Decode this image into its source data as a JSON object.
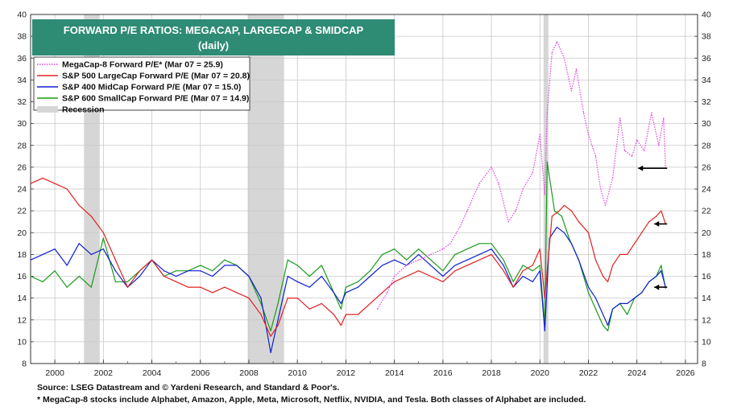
{
  "chart_data": {
    "type": "line",
    "title": "FORWARD P/E RATIOS: MEGACAP, LARGECAP & SMIDCAP",
    "subtitle": "(daily)",
    "xlabel": "",
    "ylabel": "",
    "xlim": [
      1999,
      2026.5
    ],
    "ylim": [
      8,
      40
    ],
    "x_ticks": [
      "2000",
      "2002",
      "2004",
      "2006",
      "2008",
      "2010",
      "2012",
      "2014",
      "2016",
      "2018",
      "2020",
      "2022",
      "2024",
      "2026"
    ],
    "y_ticks": [
      "8",
      "10",
      "12",
      "14",
      "16",
      "18",
      "20",
      "22",
      "24",
      "26",
      "28",
      "30",
      "32",
      "34",
      "36",
      "38",
      "40"
    ],
    "legend_position": "top-left",
    "recessions": [
      [
        2001.2,
        2001.85
      ],
      [
        2007.95,
        2009.45
      ],
      [
        2020.15,
        2020.35
      ]
    ],
    "recession_label": "Recession",
    "series": [
      {
        "name": "MegaCap-8 Forward P/E* (Mar 07 = 25.9)",
        "color": "#e040e0",
        "style": "dotted",
        "x": [
          2013.3,
          2013.7,
          2014.0,
          2014.5,
          2015.0,
          2015.5,
          2016.0,
          2016.3,
          2016.7,
          2017.0,
          2017.5,
          2018.0,
          2018.3,
          2018.7,
          2019.0,
          2019.3,
          2019.7,
          2020.0,
          2020.2,
          2020.3,
          2020.5,
          2020.7,
          2021.0,
          2021.3,
          2021.5,
          2021.8,
          2022.0,
          2022.3,
          2022.5,
          2022.7,
          2023.0,
          2023.3,
          2023.5,
          2023.8,
          2024.0,
          2024.3,
          2024.6,
          2024.9,
          2025.1,
          2025.18
        ],
        "values": [
          13.0,
          14.5,
          16.0,
          17.0,
          17.5,
          18.0,
          18.5,
          19.0,
          20.5,
          22.0,
          24.5,
          26.0,
          24.5,
          21.0,
          22.0,
          24.0,
          25.5,
          29.0,
          23.5,
          31.0,
          36.5,
          37.5,
          36.0,
          33.0,
          35.0,
          31.0,
          29.0,
          27.0,
          24.0,
          22.5,
          25.0,
          30.5,
          27.5,
          27.0,
          28.5,
          27.5,
          31.0,
          28.0,
          30.5,
          25.9
        ]
      },
      {
        "name": "S&P 500 LargeCap Forward P/E (Mar 07 = 20.8)",
        "color": "#e02020",
        "style": "solid",
        "x": [
          1999.0,
          1999.5,
          2000.0,
          2000.5,
          2001.0,
          2001.5,
          2002.0,
          2002.5,
          2003.0,
          2003.5,
          2004.0,
          2004.5,
          2005.0,
          2005.5,
          2006.0,
          2006.5,
          2007.0,
          2007.5,
          2008.0,
          2008.5,
          2008.9,
          2009.2,
          2009.6,
          2010.0,
          2010.5,
          2011.0,
          2011.5,
          2011.8,
          2012.0,
          2012.5,
          2013.0,
          2013.5,
          2014.0,
          2014.5,
          2015.0,
          2015.5,
          2016.0,
          2016.5,
          2017.0,
          2017.5,
          2018.0,
          2018.5,
          2018.9,
          2019.3,
          2019.7,
          2020.0,
          2020.2,
          2020.5,
          2020.8,
          2021.0,
          2021.3,
          2021.6,
          2022.0,
          2022.3,
          2022.6,
          2022.8,
          2023.0,
          2023.3,
          2023.6,
          2023.9,
          2024.2,
          2024.5,
          2024.8,
          2025.0,
          2025.18
        ],
        "values": [
          24.5,
          25.0,
          24.5,
          24.0,
          22.5,
          21.5,
          20.0,
          17.5,
          15.0,
          16.5,
          17.5,
          16.0,
          15.5,
          15.0,
          15.0,
          14.5,
          15.0,
          14.5,
          14.0,
          12.5,
          10.5,
          11.5,
          14.0,
          14.0,
          13.0,
          13.5,
          12.5,
          11.5,
          12.5,
          12.5,
          13.5,
          14.5,
          15.5,
          16.0,
          16.5,
          16.0,
          15.5,
          16.5,
          17.0,
          17.5,
          18.0,
          16.5,
          15.0,
          16.5,
          17.0,
          18.5,
          14.0,
          21.5,
          22.0,
          22.5,
          22.0,
          21.0,
          20.0,
          17.5,
          16.0,
          15.5,
          17.0,
          18.0,
          18.0,
          19.0,
          20.0,
          21.0,
          21.5,
          22.0,
          20.8
        ]
      },
      {
        "name": "S&P 400 MidCap Forward P/E (Mar 07 = 15.0)",
        "color": "#1020d0",
        "style": "solid",
        "x": [
          1999.0,
          1999.5,
          2000.0,
          2000.5,
          2001.0,
          2001.5,
          2002.0,
          2002.5,
          2003.0,
          2003.5,
          2004.0,
          2004.5,
          2005.0,
          2005.5,
          2006.0,
          2006.5,
          2007.0,
          2007.5,
          2008.0,
          2008.5,
          2008.9,
          2009.2,
          2009.6,
          2010.0,
          2010.5,
          2011.0,
          2011.5,
          2011.8,
          2012.0,
          2012.5,
          2013.0,
          2013.5,
          2014.0,
          2014.5,
          2015.0,
          2015.5,
          2016.0,
          2016.5,
          2017.0,
          2017.5,
          2018.0,
          2018.5,
          2018.9,
          2019.3,
          2019.7,
          2020.0,
          2020.2,
          2020.4,
          2020.7,
          2021.0,
          2021.3,
          2021.6,
          2022.0,
          2022.3,
          2022.6,
          2022.8,
          2023.0,
          2023.3,
          2023.6,
          2023.9,
          2024.2,
          2024.5,
          2024.8,
          2025.0,
          2025.18
        ],
        "values": [
          17.5,
          18.0,
          18.5,
          17.0,
          19.0,
          18.0,
          18.5,
          16.5,
          15.0,
          16.0,
          17.5,
          16.5,
          16.0,
          16.5,
          16.5,
          16.0,
          17.0,
          17.0,
          16.0,
          14.0,
          9.0,
          12.0,
          16.0,
          15.5,
          15.0,
          16.0,
          14.5,
          13.5,
          14.5,
          15.0,
          16.0,
          17.0,
          17.5,
          17.0,
          18.0,
          17.0,
          16.0,
          17.0,
          17.5,
          18.0,
          18.5,
          17.0,
          15.0,
          16.0,
          15.5,
          16.5,
          11.0,
          19.5,
          20.5,
          20.0,
          19.0,
          17.5,
          15.0,
          14.0,
          12.5,
          11.5,
          13.0,
          13.5,
          13.5,
          14.0,
          14.5,
          15.5,
          16.0,
          16.5,
          15.0
        ]
      },
      {
        "name": "S&P 600 SmallCap Forward P/E (Mar 07 = 14.9)",
        "color": "#1a9a1a",
        "style": "solid",
        "x": [
          1999.0,
          1999.5,
          2000.0,
          2000.5,
          2001.0,
          2001.5,
          2002.0,
          2002.5,
          2003.0,
          2003.5,
          2004.0,
          2004.5,
          2005.0,
          2005.5,
          2006.0,
          2006.5,
          2007.0,
          2007.5,
          2008.0,
          2008.5,
          2008.9,
          2009.2,
          2009.6,
          2010.0,
          2010.5,
          2011.0,
          2011.5,
          2011.8,
          2012.0,
          2012.5,
          2013.0,
          2013.5,
          2014.0,
          2014.5,
          2015.0,
          2015.5,
          2016.0,
          2016.5,
          2017.0,
          2017.5,
          2018.0,
          2018.5,
          2018.9,
          2019.3,
          2019.7,
          2020.0,
          2020.2,
          2020.3,
          2020.6,
          2020.9,
          2021.2,
          2021.6,
          2022.0,
          2022.3,
          2022.6,
          2022.8,
          2023.0,
          2023.3,
          2023.6,
          2023.9,
          2024.2,
          2024.5,
          2024.8,
          2025.0,
          2025.18
        ],
        "values": [
          16.0,
          15.5,
          16.5,
          15.0,
          16.0,
          15.0,
          19.5,
          15.5,
          15.5,
          16.5,
          17.5,
          16.0,
          16.5,
          16.5,
          17.0,
          16.5,
          17.5,
          17.0,
          16.0,
          13.5,
          11.0,
          13.5,
          17.5,
          17.0,
          16.0,
          17.0,
          14.5,
          13.0,
          15.0,
          15.5,
          16.5,
          18.0,
          18.5,
          17.5,
          18.5,
          17.5,
          16.5,
          18.0,
          18.5,
          19.0,
          19.0,
          17.5,
          15.5,
          17.0,
          16.5,
          17.0,
          11.5,
          26.5,
          22.0,
          21.5,
          19.5,
          17.5,
          14.5,
          13.0,
          11.5,
          11.0,
          13.0,
          13.5,
          12.5,
          14.0,
          14.5,
          15.5,
          16.0,
          17.0,
          14.9
        ]
      }
    ]
  },
  "source_line_1": "Source: LSEG Datastream and © Yardeni Research, and Standard & Poor's.",
  "source_line_2": "* MegaCap-8 stocks include Alphabet, Amazon, Apple, Meta, Microsoft, Netflix, NVIDIA, and Tesla. Both classes of Alphabet are included."
}
